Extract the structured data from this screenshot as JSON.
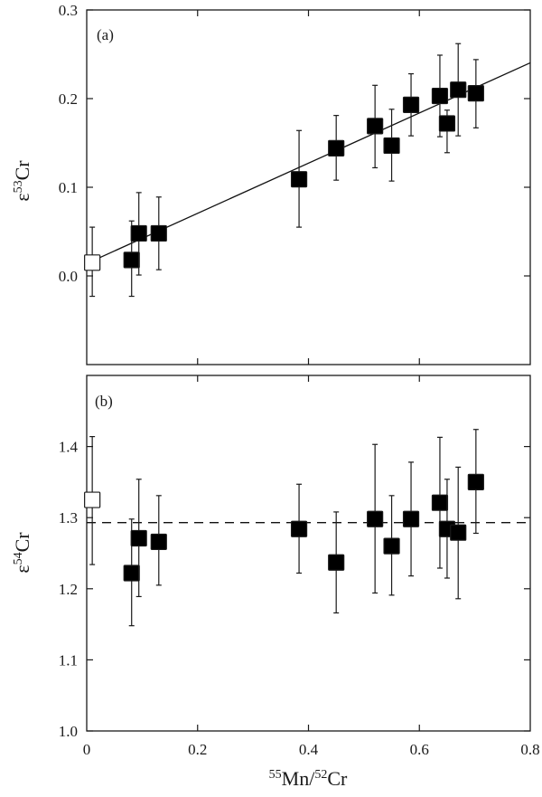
{
  "chart_data": [
    {
      "panel": "(a)",
      "type": "scatter",
      "title": "",
      "xlabel": "55Mn/52Cr",
      "ylabel": "ε53Cr",
      "xlim": [
        0,
        0.8
      ],
      "ylim": [
        -0.1,
        0.3
      ],
      "yticks": [
        0.0,
        0.1,
        0.2,
        0.3
      ],
      "ytick_labels": [
        "0.0",
        "0.1",
        "0.2",
        "0.3"
      ],
      "xticks": [
        0,
        0.2,
        0.4,
        0.6,
        0.8
      ],
      "grid": false,
      "fit_line": {
        "style": "solid",
        "intercept": 0.014,
        "slope": 0.283,
        "x_range": [
          0,
          0.8
        ]
      },
      "series": [
        {
          "name": "open",
          "marker": "open-square",
          "points": [
            {
              "x": 0.01,
              "y": 0.015,
              "err_low": -0.023,
              "err_high": 0.055
            }
          ]
        },
        {
          "name": "filled",
          "marker": "filled-square",
          "points": [
            {
              "x": 0.081,
              "y": 0.018,
              "err_low": -0.023,
              "err_high": 0.062
            },
            {
              "x": 0.094,
              "y": 0.048,
              "err_low": 0.001,
              "err_high": 0.094
            },
            {
              "x": 0.13,
              "y": 0.048,
              "err_low": 0.007,
              "err_high": 0.089
            },
            {
              "x": 0.383,
              "y": 0.109,
              "err_low": 0.055,
              "err_high": 0.164
            },
            {
              "x": 0.45,
              "y": 0.144,
              "err_low": 0.108,
              "err_high": 0.181
            },
            {
              "x": 0.52,
              "y": 0.169,
              "err_low": 0.122,
              "err_high": 0.215
            },
            {
              "x": 0.55,
              "y": 0.147,
              "err_low": 0.107,
              "err_high": 0.188
            },
            {
              "x": 0.585,
              "y": 0.193,
              "err_low": 0.158,
              "err_high": 0.228
            },
            {
              "x": 0.637,
              "y": 0.203,
              "err_low": 0.157,
              "err_high": 0.249
            },
            {
              "x": 0.65,
              "y": 0.172,
              "err_low": 0.139,
              "err_high": 0.187
            },
            {
              "x": 0.67,
              "y": 0.21,
              "err_low": 0.158,
              "err_high": 0.262
            },
            {
              "x": 0.702,
              "y": 0.206,
              "err_low": 0.167,
              "err_high": 0.244
            }
          ]
        }
      ]
    },
    {
      "panel": "(b)",
      "type": "scatter",
      "title": "",
      "xlabel": "55Mn/52Cr",
      "ylabel": "ε54Cr",
      "xlim": [
        0,
        0.8
      ],
      "ylim": [
        1.0,
        1.5
      ],
      "yticks": [
        1.0,
        1.1,
        1.2,
        1.3,
        1.4
      ],
      "ytick_labels": [
        "1.0",
        "1.1",
        "1.2",
        "1.3",
        "1.4"
      ],
      "xticks": [
        0,
        0.2,
        0.4,
        0.6,
        0.8
      ],
      "xtick_labels": [
        "0",
        "0.2",
        "0.4",
        "0.6",
        "0.8"
      ],
      "grid": false,
      "reference_line": {
        "style": "dashed",
        "y": 1.293
      },
      "series": [
        {
          "name": "open",
          "marker": "open-square",
          "points": [
            {
              "x": 0.01,
              "y": 1.325,
              "err_low": 1.234,
              "err_high": 1.414
            }
          ]
        },
        {
          "name": "filled",
          "marker": "filled-square",
          "points": [
            {
              "x": 0.081,
              "y": 1.222,
              "err_low": 1.148,
              "err_high": 1.298
            },
            {
              "x": 0.094,
              "y": 1.271,
              "err_low": 1.189,
              "err_high": 1.354
            },
            {
              "x": 0.13,
              "y": 1.266,
              "err_low": 1.205,
              "err_high": 1.331
            },
            {
              "x": 0.383,
              "y": 1.284,
              "err_low": 1.222,
              "err_high": 1.347
            },
            {
              "x": 0.45,
              "y": 1.237,
              "err_low": 1.166,
              "err_high": 1.308
            },
            {
              "x": 0.52,
              "y": 1.298,
              "err_low": 1.194,
              "err_high": 1.403
            },
            {
              "x": 0.55,
              "y": 1.26,
              "err_low": 1.191,
              "err_high": 1.331
            },
            {
              "x": 0.585,
              "y": 1.298,
              "err_low": 1.218,
              "err_high": 1.378
            },
            {
              "x": 0.637,
              "y": 1.321,
              "err_low": 1.229,
              "err_high": 1.413
            },
            {
              "x": 0.65,
              "y": 1.284,
              "err_low": 1.215,
              "err_high": 1.354
            },
            {
              "x": 0.67,
              "y": 1.279,
              "err_low": 1.186,
              "err_high": 1.371
            },
            {
              "x": 0.702,
              "y": 1.35,
              "err_low": 1.278,
              "err_high": 1.424
            }
          ]
        }
      ]
    }
  ],
  "labels": {
    "panel_a": "(a)",
    "panel_b": "(b)",
    "ylabel_a": {
      "prefix": "ε",
      "sup": "53",
      "suffix": "Cr"
    },
    "ylabel_b": {
      "prefix": "ε",
      "sup": "54",
      "suffix": "Cr"
    },
    "xlabel": {
      "sup1": "55",
      "mid": "Mn/",
      "sup2": "52",
      "suffix": "Cr"
    }
  },
  "colors": {
    "axis": "#1a1a1a",
    "marker_fill": "#000000",
    "open_marker_fill": "#ffffff",
    "line": "#111111"
  }
}
